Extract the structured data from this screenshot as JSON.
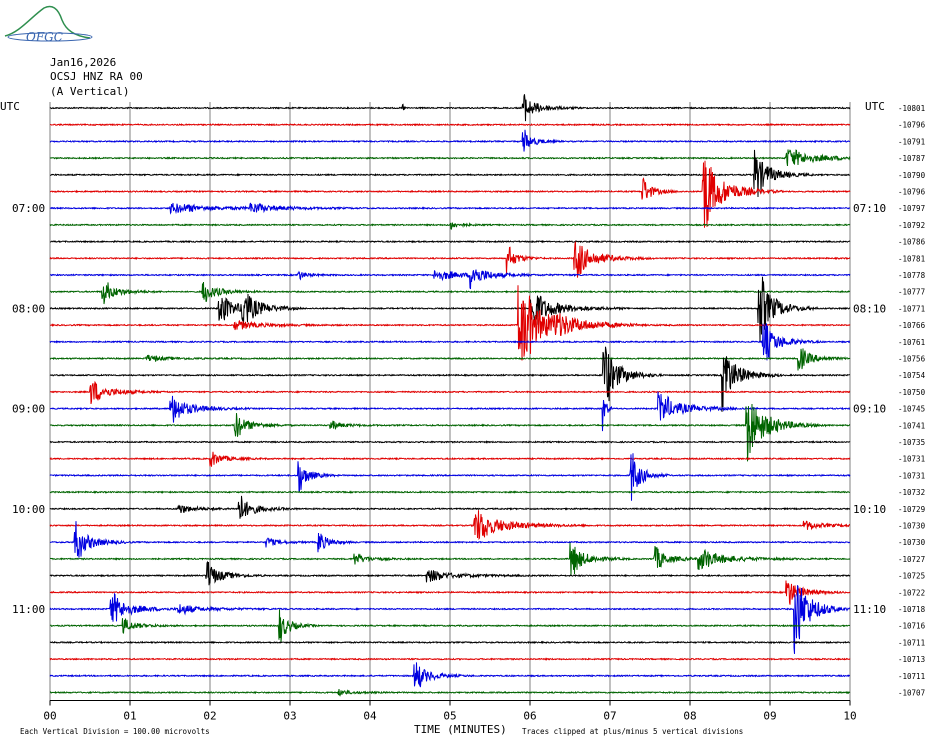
{
  "logo": {
    "text": "OFGC"
  },
  "header": {
    "date": "Jan16,2026",
    "station": "OCSJ HNZ RA 00",
    "component": "(A Vertical)"
  },
  "chart_data": {
    "type": "line",
    "title": "",
    "xlabel": "TIME (MINUTES)",
    "ylabel": "",
    "xlim": [
      0,
      10
    ],
    "x_ticks": [
      "00",
      "01",
      "02",
      "03",
      "04",
      "05",
      "06",
      "07",
      "08",
      "09",
      "10"
    ],
    "left_axis_label": "UTC",
    "right_axis_label": "UTC",
    "left_time_labels": [
      {
        "row": 6,
        "label": "07:00"
      },
      {
        "row": 12,
        "label": "08:00"
      },
      {
        "row": 18,
        "label": "09:00"
      },
      {
        "row": 24,
        "label": "10:00"
      },
      {
        "row": 30,
        "label": "11:00"
      }
    ],
    "right_time_labels": [
      {
        "row": 6,
        "label": "07:10"
      },
      {
        "row": 12,
        "label": "08:10"
      },
      {
        "row": 18,
        "label": "09:10"
      },
      {
        "row": 24,
        "label": "10:10"
      },
      {
        "row": 30,
        "label": "11:10"
      }
    ],
    "trace_colors": [
      "#000000",
      "#e00000",
      "#0000e0",
      "#006400"
    ],
    "trace_offsets": [
      -10801,
      -10796,
      -10791,
      -10787,
      -10790,
      -10796,
      -10797,
      -10792,
      -10786,
      -10781,
      -10778,
      -10777,
      -10771,
      -10766,
      -10761,
      -10756,
      -10754,
      -10750,
      -10745,
      -10741,
      -10735,
      -10731,
      -10731,
      -10732,
      -10729,
      -10730,
      -10730,
      -10727,
      -10725,
      -10722,
      -10718,
      -10716,
      -10711,
      -10713,
      -10711,
      -10707
    ],
    "events": [
      {
        "row": 0,
        "x": 5.9,
        "amp": 1.0,
        "dur": 0.3
      },
      {
        "row": 0,
        "x": 4.4,
        "amp": 0.6,
        "dur": 0.02
      },
      {
        "row": 2,
        "x": 5.9,
        "amp": 0.9,
        "dur": 0.2
      },
      {
        "row": 3,
        "x": 9.2,
        "amp": 0.6,
        "dur": 0.7
      },
      {
        "row": 4,
        "x": 8.8,
        "amp": 1.8,
        "dur": 0.3
      },
      {
        "row": 5,
        "x": 7.4,
        "amp": 1.0,
        "dur": 0.2
      },
      {
        "row": 5,
        "x": 8.15,
        "amp": 2.8,
        "dur": 0.4
      },
      {
        "row": 6,
        "x": 1.5,
        "amp": 0.3,
        "dur": 1.0
      },
      {
        "row": 6,
        "x": 2.5,
        "amp": 0.3,
        "dur": 0.6
      },
      {
        "row": 7,
        "x": 5.0,
        "amp": 0.3,
        "dur": 0.2
      },
      {
        "row": 9,
        "x": 5.7,
        "amp": 1.0,
        "dur": 0.2
      },
      {
        "row": 9,
        "x": 6.55,
        "amp": 1.4,
        "dur": 0.4
      },
      {
        "row": 10,
        "x": 3.1,
        "amp": 0.3,
        "dur": 0.2
      },
      {
        "row": 10,
        "x": 4.8,
        "amp": 0.3,
        "dur": 0.8
      },
      {
        "row": 10,
        "x": 5.25,
        "amp": 0.8,
        "dur": 0.3
      },
      {
        "row": 11,
        "x": 0.65,
        "amp": 0.8,
        "dur": 0.3
      },
      {
        "row": 11,
        "x": 1.9,
        "amp": 0.8,
        "dur": 0.3
      },
      {
        "row": 12,
        "x": 2.1,
        "amp": 1.0,
        "dur": 0.4
      },
      {
        "row": 12,
        "x": 2.4,
        "amp": 1.3,
        "dur": 0.3
      },
      {
        "row": 12,
        "x": 6.0,
        "amp": 1.3,
        "dur": 0.5
      },
      {
        "row": 12,
        "x": 8.85,
        "amp": 2.5,
        "dur": 0.3
      },
      {
        "row": 13,
        "x": 2.3,
        "amp": 0.3,
        "dur": 0.6
      },
      {
        "row": 13,
        "x": 5.85,
        "amp": 2.6,
        "dur": 0.6
      },
      {
        "row": 13,
        "x": 6.3,
        "amp": 0.3,
        "dur": 0.7
      },
      {
        "row": 14,
        "x": 8.9,
        "amp": 1.5,
        "dur": 0.3
      },
      {
        "row": 15,
        "x": 9.35,
        "amp": 0.8,
        "dur": 0.3
      },
      {
        "row": 15,
        "x": 1.2,
        "amp": 0.2,
        "dur": 0.5
      },
      {
        "row": 16,
        "x": 6.9,
        "amp": 2.5,
        "dur": 0.3
      },
      {
        "row": 16,
        "x": 8.4,
        "amp": 2.2,
        "dur": 0.3
      },
      {
        "row": 17,
        "x": 0.5,
        "amp": 0.8,
        "dur": 0.4
      },
      {
        "row": 18,
        "x": 1.5,
        "amp": 1.0,
        "dur": 0.4
      },
      {
        "row": 18,
        "x": 7.6,
        "amp": 1.0,
        "dur": 0.5
      },
      {
        "row": 18,
        "x": 6.9,
        "amp": 2.0,
        "dur": 0.05
      },
      {
        "row": 19,
        "x": 2.3,
        "amp": 0.9,
        "dur": 0.3
      },
      {
        "row": 19,
        "x": 3.5,
        "amp": 0.3,
        "dur": 0.3
      },
      {
        "row": 19,
        "x": 8.7,
        "amp": 2.4,
        "dur": 0.4
      },
      {
        "row": 21,
        "x": 2.0,
        "amp": 0.5,
        "dur": 0.3
      },
      {
        "row": 22,
        "x": 3.1,
        "amp": 1.2,
        "dur": 0.2
      },
      {
        "row": 22,
        "x": 7.25,
        "amp": 1.9,
        "dur": 0.2
      },
      {
        "row": 24,
        "x": 2.35,
        "amp": 1.0,
        "dur": 0.3
      },
      {
        "row": 24,
        "x": 1.6,
        "amp": 0.3,
        "dur": 0.4
      },
      {
        "row": 25,
        "x": 5.3,
        "amp": 1.1,
        "dur": 0.6
      },
      {
        "row": 25,
        "x": 9.4,
        "amp": 0.3,
        "dur": 0.5
      },
      {
        "row": 26,
        "x": 0.3,
        "amp": 1.4,
        "dur": 0.3
      },
      {
        "row": 26,
        "x": 3.35,
        "amp": 0.8,
        "dur": 0.2
      },
      {
        "row": 26,
        "x": 2.7,
        "amp": 0.3,
        "dur": 0.3
      },
      {
        "row": 27,
        "x": 6.5,
        "amp": 1.2,
        "dur": 0.3
      },
      {
        "row": 27,
        "x": 7.55,
        "amp": 0.8,
        "dur": 0.3
      },
      {
        "row": 27,
        "x": 8.1,
        "amp": 0.7,
        "dur": 0.6
      },
      {
        "row": 27,
        "x": 3.8,
        "amp": 0.4,
        "dur": 0.3
      },
      {
        "row": 28,
        "x": 1.95,
        "amp": 1.0,
        "dur": 0.3
      },
      {
        "row": 28,
        "x": 4.7,
        "amp": 0.4,
        "dur": 0.6
      },
      {
        "row": 29,
        "x": 9.2,
        "amp": 1.0,
        "dur": 0.3
      },
      {
        "row": 30,
        "x": 0.75,
        "amp": 1.1,
        "dur": 0.4
      },
      {
        "row": 30,
        "x": 1.6,
        "amp": 0.3,
        "dur": 0.6
      },
      {
        "row": 30,
        "x": 9.3,
        "amp": 3.0,
        "dur": 0.3
      },
      {
        "row": 31,
        "x": 0.9,
        "amp": 0.5,
        "dur": 0.3
      },
      {
        "row": 31,
        "x": 2.85,
        "amp": 1.3,
        "dur": 0.2
      },
      {
        "row": 34,
        "x": 4.55,
        "amp": 1.0,
        "dur": 0.3
      },
      {
        "row": 35,
        "x": 3.6,
        "amp": 0.2,
        "dur": 0.3
      }
    ]
  },
  "footer": {
    "scale_note": "Each Vertical Division =  100.00 microvolts",
    "clip_note": "Traces clipped at plus/minus 5 vertical divisions"
  }
}
